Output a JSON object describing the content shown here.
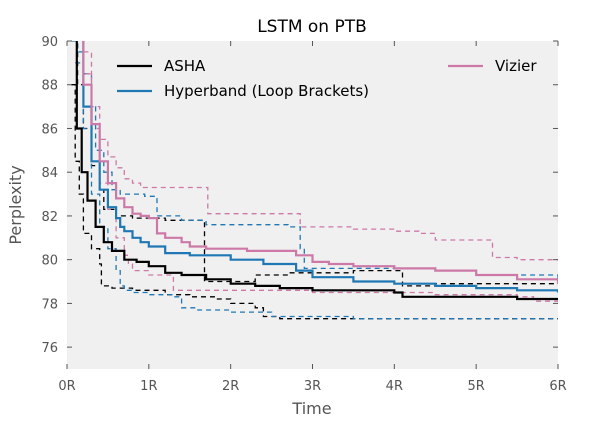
{
  "chart_data": {
    "type": "line",
    "title": "LSTM on PTB",
    "xlabel": "Time",
    "ylabel": "Perplexity",
    "xlim": [
      0,
      6
    ],
    "ylim": [
      75,
      90
    ],
    "xticks": [
      0,
      1,
      2,
      3,
      4,
      5,
      6
    ],
    "xtick_labels": [
      "0R",
      "1R",
      "2R",
      "3R",
      "4R",
      "5R",
      "6R"
    ],
    "yticks": [
      76,
      78,
      80,
      82,
      84,
      86,
      88,
      90
    ],
    "ytick_labels": [
      "76",
      "78",
      "80",
      "82",
      "84",
      "86",
      "88",
      "90"
    ],
    "grid": false,
    "legend_position": "top",
    "series": [
      {
        "name": "ASHA",
        "color": "#000000",
        "mean": [
          [
            0.05,
            90.5
          ],
          [
            0.12,
            86.0
          ],
          [
            0.18,
            84.0
          ],
          [
            0.25,
            82.7
          ],
          [
            0.35,
            81.5
          ],
          [
            0.45,
            80.8
          ],
          [
            0.55,
            80.4
          ],
          [
            0.7,
            80.0
          ],
          [
            0.85,
            79.9
          ],
          [
            1.0,
            79.7
          ],
          [
            1.2,
            79.4
          ],
          [
            1.4,
            79.3
          ],
          [
            1.7,
            79.1
          ],
          [
            2.0,
            78.9
          ],
          [
            2.3,
            78.8
          ],
          [
            2.6,
            78.7
          ],
          [
            3.0,
            78.6
          ],
          [
            3.5,
            78.6
          ],
          [
            4.0,
            78.5
          ],
          [
            4.1,
            78.3
          ],
          [
            5.0,
            78.3
          ],
          [
            5.5,
            78.2
          ],
          [
            6.0,
            78.2
          ]
        ],
        "lower": [
          [
            0.05,
            88.0
          ],
          [
            0.1,
            84.5
          ],
          [
            0.15,
            83.0
          ],
          [
            0.2,
            81.2
          ],
          [
            0.3,
            80.5
          ],
          [
            0.4,
            79.8
          ],
          [
            0.42,
            78.8
          ],
          [
            0.55,
            78.7
          ],
          [
            0.8,
            78.6
          ],
          [
            1.2,
            78.4
          ],
          [
            1.5,
            78.3
          ],
          [
            1.8,
            78.2
          ],
          [
            2.0,
            78.0
          ],
          [
            2.3,
            77.8
          ],
          [
            2.4,
            77.4
          ],
          [
            2.6,
            77.3
          ],
          [
            3.5,
            77.3
          ],
          [
            4.5,
            77.3
          ],
          [
            5.0,
            77.3
          ],
          [
            6.0,
            77.3
          ]
        ],
        "upper": [
          [
            0.07,
            90.5
          ],
          [
            0.13,
            88.0
          ],
          [
            0.2,
            86.0
          ],
          [
            0.3,
            84.3
          ],
          [
            0.4,
            83.2
          ],
          [
            0.45,
            82.3
          ],
          [
            0.6,
            82.0
          ],
          [
            0.8,
            81.9
          ],
          [
            1.2,
            81.8
          ],
          [
            1.65,
            81.8
          ],
          [
            1.68,
            79.0
          ],
          [
            2.0,
            79.0
          ],
          [
            2.3,
            79.3
          ],
          [
            2.7,
            79.4
          ],
          [
            3.5,
            79.5
          ],
          [
            4.0,
            79.5
          ],
          [
            4.1,
            78.8
          ],
          [
            4.5,
            78.9
          ],
          [
            5.0,
            78.9
          ],
          [
            6.0,
            78.9
          ]
        ]
      },
      {
        "name": "Hyperband (Loop Brackets)",
        "color": "#1f77b4",
        "mean": [
          [
            0.1,
            90.5
          ],
          [
            0.2,
            87.0
          ],
          [
            0.3,
            84.5
          ],
          [
            0.4,
            83.2
          ],
          [
            0.5,
            82.4
          ],
          [
            0.6,
            81.9
          ],
          [
            0.65,
            81.5
          ],
          [
            0.7,
            81.3
          ],
          [
            0.8,
            81.0
          ],
          [
            0.9,
            80.8
          ],
          [
            1.0,
            80.6
          ],
          [
            1.2,
            80.3
          ],
          [
            1.5,
            80.2
          ],
          [
            1.7,
            80.2
          ],
          [
            2.0,
            80.0
          ],
          [
            2.4,
            79.8
          ],
          [
            2.8,
            79.5
          ],
          [
            3.0,
            79.2
          ],
          [
            3.5,
            79.0
          ],
          [
            4.0,
            78.9
          ],
          [
            4.5,
            78.8
          ],
          [
            5.0,
            78.7
          ],
          [
            5.5,
            78.6
          ],
          [
            6.0,
            78.5
          ]
        ],
        "lower": [
          [
            0.1,
            89.0
          ],
          [
            0.2,
            86.0
          ],
          [
            0.3,
            83.0
          ],
          [
            0.4,
            81.5
          ],
          [
            0.5,
            80.5
          ],
          [
            0.6,
            79.5
          ],
          [
            0.65,
            78.8
          ],
          [
            0.7,
            78.6
          ],
          [
            0.8,
            78.5
          ],
          [
            1.0,
            78.4
          ],
          [
            1.3,
            78.3
          ],
          [
            1.4,
            77.8
          ],
          [
            1.6,
            77.7
          ],
          [
            2.0,
            77.6
          ],
          [
            2.5,
            77.6
          ],
          [
            2.5,
            77.4
          ],
          [
            3.5,
            77.3
          ],
          [
            4.5,
            77.3
          ],
          [
            5.0,
            77.3
          ],
          [
            6.0,
            77.3
          ]
        ],
        "upper": [
          [
            0.05,
            90.0
          ],
          [
            0.13,
            89.5
          ],
          [
            0.2,
            88.5
          ],
          [
            0.3,
            87.0
          ],
          [
            0.35,
            85.0
          ],
          [
            0.45,
            84.0
          ],
          [
            0.55,
            83.2
          ],
          [
            0.65,
            83.0
          ],
          [
            0.95,
            82.9
          ],
          [
            1.1,
            82.0
          ],
          [
            1.4,
            81.8
          ],
          [
            1.7,
            81.6
          ],
          [
            2.2,
            81.6
          ],
          [
            2.7,
            81.5
          ],
          [
            2.8,
            81.5
          ],
          [
            2.85,
            80.5
          ],
          [
            2.9,
            79.6
          ],
          [
            3.5,
            79.6
          ],
          [
            4.0,
            79.6
          ],
          [
            4.5,
            79.5
          ],
          [
            5.0,
            79.3
          ],
          [
            5.5,
            79.3
          ],
          [
            6.0,
            79.1
          ]
        ]
      },
      {
        "name": "Vizier",
        "color": "#cc79a7",
        "mean": [
          [
            0.1,
            90.5
          ],
          [
            0.2,
            88.0
          ],
          [
            0.3,
            86.2
          ],
          [
            0.4,
            84.5
          ],
          [
            0.5,
            83.5
          ],
          [
            0.6,
            82.8
          ],
          [
            0.7,
            82.4
          ],
          [
            0.8,
            82.1
          ],
          [
            0.9,
            82.0
          ],
          [
            1.0,
            81.9
          ],
          [
            1.1,
            81.2
          ],
          [
            1.2,
            81.0
          ],
          [
            1.4,
            80.8
          ],
          [
            1.5,
            80.6
          ],
          [
            1.7,
            80.5
          ],
          [
            2.0,
            80.5
          ],
          [
            2.2,
            80.4
          ],
          [
            2.5,
            80.4
          ],
          [
            2.8,
            80.2
          ],
          [
            3.0,
            79.9
          ],
          [
            3.2,
            79.8
          ],
          [
            3.5,
            79.7
          ],
          [
            4.0,
            79.6
          ],
          [
            4.5,
            79.5
          ],
          [
            5.0,
            79.3
          ],
          [
            5.5,
            79.1
          ],
          [
            6.0,
            78.9
          ]
        ],
        "lower": [
          [
            0.2,
            89.5
          ],
          [
            0.3,
            86.0
          ],
          [
            0.4,
            83.5
          ],
          [
            0.5,
            82.3
          ],
          [
            0.6,
            81.0
          ],
          [
            0.7,
            80.2
          ],
          [
            0.75,
            79.8
          ],
          [
            0.8,
            79.5
          ],
          [
            1.0,
            79.3
          ],
          [
            1.2,
            79.3
          ],
          [
            1.3,
            78.6
          ],
          [
            1.5,
            78.6
          ],
          [
            2.0,
            78.6
          ],
          [
            2.5,
            78.6
          ],
          [
            3.0,
            78.5
          ],
          [
            3.5,
            78.5
          ],
          [
            4.0,
            78.5
          ],
          [
            4.5,
            78.4
          ],
          [
            5.0,
            78.4
          ],
          [
            5.5,
            78.3
          ],
          [
            5.7,
            78.1
          ],
          [
            6.0,
            78.0
          ]
        ],
        "upper": [
          [
            0.1,
            90.5
          ],
          [
            0.2,
            88.5
          ],
          [
            0.3,
            87.0
          ],
          [
            0.4,
            85.5
          ],
          [
            0.5,
            84.7
          ],
          [
            0.6,
            84.2
          ],
          [
            0.7,
            83.7
          ],
          [
            0.8,
            83.5
          ],
          [
            0.9,
            83.3
          ],
          [
            1.0,
            83.3
          ],
          [
            1.5,
            83.3
          ],
          [
            1.7,
            83.3
          ],
          [
            1.72,
            82.1
          ],
          [
            2.0,
            82.1
          ],
          [
            2.5,
            82.1
          ],
          [
            2.8,
            82.1
          ],
          [
            2.85,
            81.5
          ],
          [
            3.0,
            81.5
          ],
          [
            3.5,
            81.4
          ],
          [
            4.0,
            81.3
          ],
          [
            4.3,
            81.2
          ],
          [
            4.5,
            80.9
          ],
          [
            5.0,
            80.9
          ],
          [
            5.2,
            80.1
          ],
          [
            5.5,
            80.0
          ],
          [
            6.0,
            80.0
          ]
        ]
      }
    ]
  }
}
